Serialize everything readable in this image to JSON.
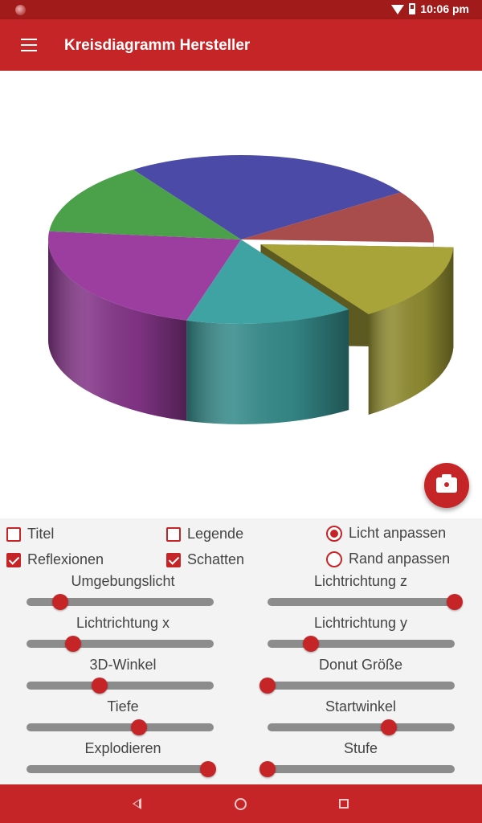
{
  "status_bar": {
    "time": "10:06 pm",
    "icons": [
      "notification-dot-icon",
      "wifi-icon",
      "battery-icon"
    ]
  },
  "app_bar": {
    "title": "Kreisdiagramm Hersteller",
    "menu_icon": "menu-icon"
  },
  "chart_data": {
    "type": "pie",
    "style": "3d",
    "title": "",
    "slices": [
      {
        "value": 25,
        "color": "#4b4aa6"
      },
      {
        "value": 10,
        "color": "#a84c4c"
      },
      {
        "value": 15,
        "color": "#a8a43a",
        "exploded": true
      },
      {
        "value": 14,
        "color": "#3fa3a3"
      },
      {
        "value": 22,
        "color": "#9b3ea0"
      },
      {
        "value": 14,
        "color": "#4aa14a"
      }
    ]
  },
  "fab": {
    "icon": "camera-icon"
  },
  "options": [
    {
      "label": "Titel",
      "type": "checkbox",
      "checked": false
    },
    {
      "label": "Legende",
      "type": "checkbox",
      "checked": false
    },
    {
      "label": "Licht anpassen",
      "type": "radio",
      "checked": true
    },
    {
      "label": "Reflexionen",
      "type": "checkbox",
      "checked": true
    },
    {
      "label": "Schatten",
      "type": "checkbox",
      "checked": true
    },
    {
      "label": "Rand anpassen",
      "type": "radio",
      "checked": false
    }
  ],
  "sliders": [
    {
      "label": "Umgebungslicht",
      "value": 0.18
    },
    {
      "label": "Lichtrichtung z",
      "value": 1.0
    },
    {
      "label": "Lichtrichtung x",
      "value": 0.25
    },
    {
      "label": "Lichtrichtung y",
      "value": 0.23
    },
    {
      "label": "3D-Winkel",
      "value": 0.39
    },
    {
      "label": "Donut Größe",
      "value": 0.0
    },
    {
      "label": "Tiefe",
      "value": 0.6
    },
    {
      "label": "Startwinkel",
      "value": 0.65
    },
    {
      "label": "Explodieren",
      "value": 0.97
    },
    {
      "label": "Stufe",
      "value": 0.0
    }
  ],
  "nav_bar": {
    "icons": [
      "back-icon",
      "home-icon",
      "recent-apps-icon"
    ]
  }
}
